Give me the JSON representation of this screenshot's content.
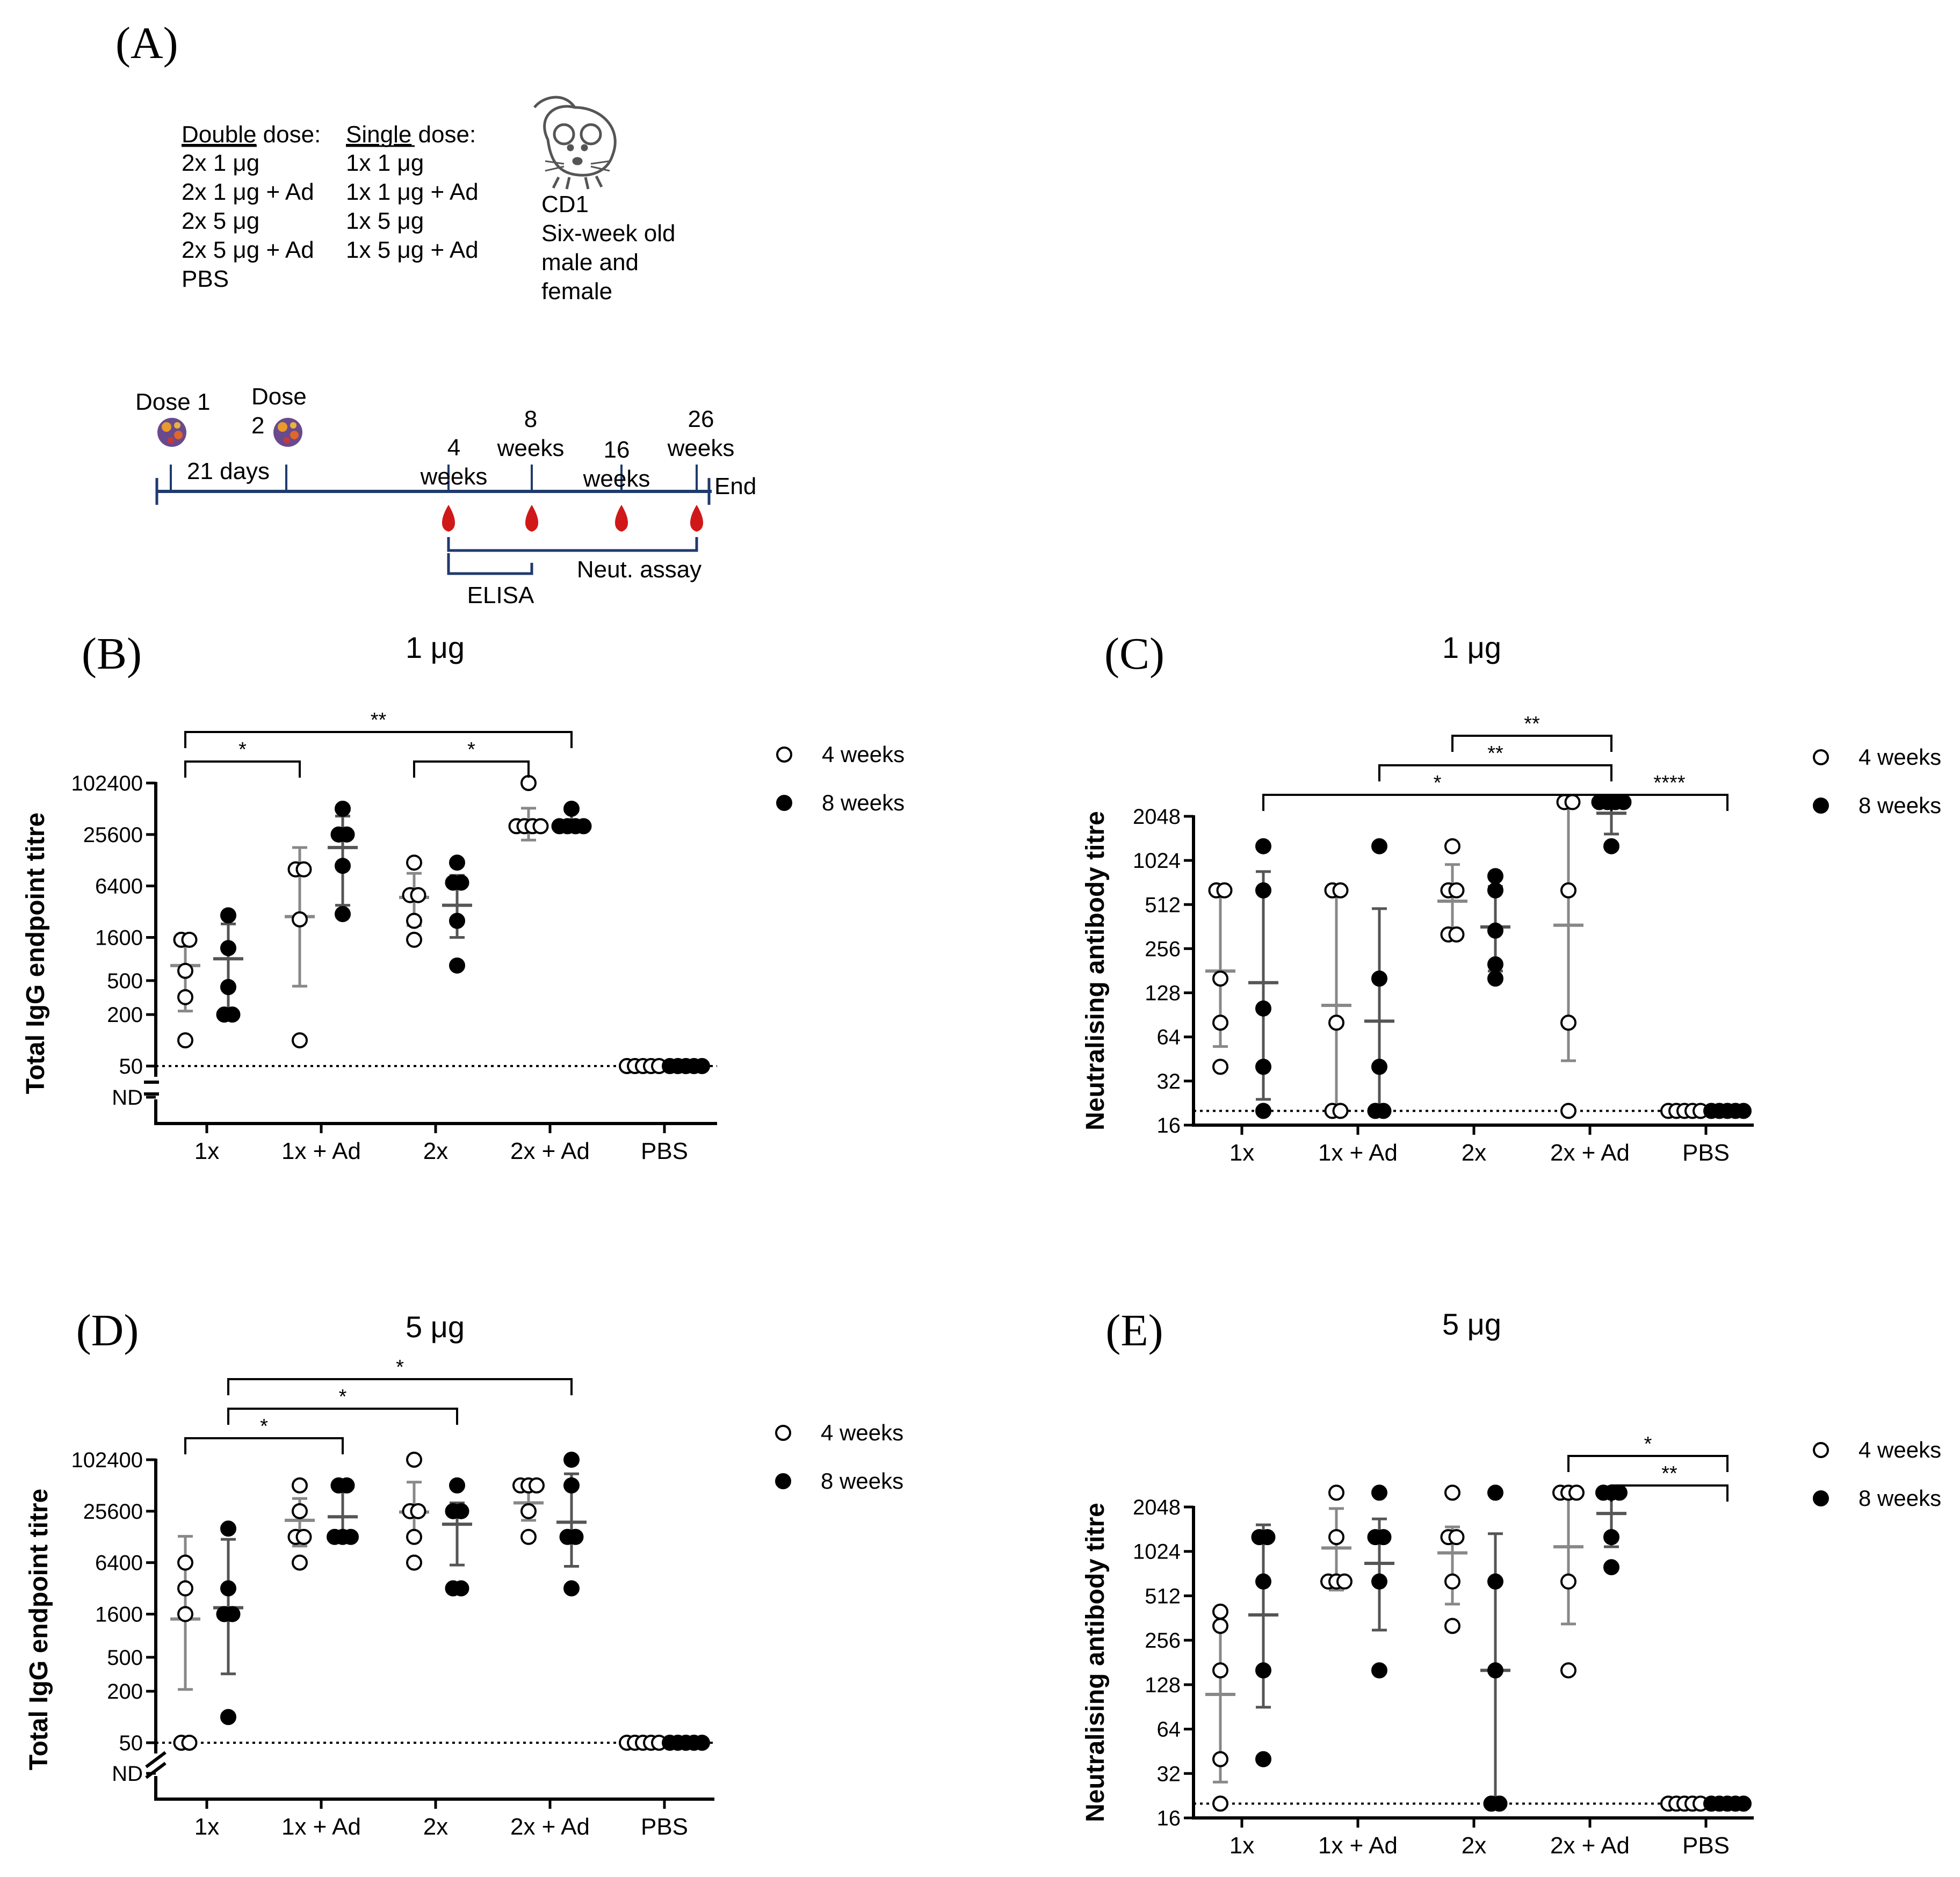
{
  "panel_a": {
    "label": "(A)",
    "double_dose": {
      "header_underlined": "Double",
      "header_rest": " dose:",
      "items": [
        "2x 1 μg",
        "2x 1 μg + Ad",
        "2x 5 μg",
        "2x 5 μg + Ad",
        "PBS"
      ]
    },
    "single_dose": {
      "header_underlined": "Single",
      "header_rest": " dose:",
      "items": [
        "1x 1 μg",
        "1x 1 μg + Ad",
        "1x 5 μg",
        "1x 5 μg + Ad"
      ]
    },
    "mouse_lines": [
      "CD1",
      "Six-week old",
      "male and",
      "female"
    ],
    "timeline": {
      "dose1": "Dose 1",
      "dose2_line1": "Dose",
      "dose2_line2": "2",
      "interval": "21 days",
      "end": "End",
      "weeks4": [
        "4",
        "weeks"
      ],
      "weeks8": [
        "8",
        "weeks"
      ],
      "weeks16": [
        "16",
        "weeks"
      ],
      "weeks26": [
        "26",
        "weeks"
      ],
      "elisa": "ELISA",
      "neut": "Neut. assay"
    },
    "colors": {
      "line": "#1f3a6e",
      "blood": "#d01818"
    }
  },
  "chart_data": [
    {
      "id": "B",
      "type": "scatter",
      "panel_label": "(B)",
      "title": "1 μg",
      "ylabel": "Total IgG endpoint titre",
      "yscale": "log2",
      "ylim": [
        50,
        102400
      ],
      "yticks": [
        "102400",
        "25600",
        "6400",
        "1600",
        "500",
        "200",
        "50"
      ],
      "ytick_values": [
        102400,
        25600,
        6400,
        1600,
        500,
        200,
        50
      ],
      "nd_label": "ND",
      "break_style": "horizontal",
      "detection_limit": 50,
      "categories": [
        "1x",
        "1x + Ad",
        "2x",
        "2x + Ad",
        "PBS"
      ],
      "legend": [
        "4 weeks",
        "8 weeks"
      ],
      "series": [
        {
          "name": "4 weeks",
          "open": true,
          "points": [
            [
              1500,
              1500,
              650,
              320,
              100
            ],
            [
              10000,
              10000,
              2600,
              100
            ],
            [
              12000,
              5000,
              5000,
              2500,
              1500
            ],
            [
              102400,
              32000,
              32000,
              32000,
              32000
            ],
            [
              50,
              50,
              50,
              50,
              50
            ]
          ],
          "mean": [
            750,
            2800,
            4700,
            36000,
            50
          ],
          "err": [
            [
              220,
              1600
            ],
            [
              430,
              18000
            ],
            [
              2200,
              9000
            ],
            [
              22000,
              52000
            ],
            [
              50,
              50
            ]
          ]
        },
        {
          "name": "8 weeks",
          "open": false,
          "points": [
            [
              2900,
              1200,
              420,
              200,
              200
            ],
            [
              51200,
              25600,
              25600,
              11000,
              3000
            ],
            [
              12000,
              7000,
              7000,
              2500,
              750
            ],
            [
              51200,
              32000,
              32000,
              32000,
              32000
            ],
            [
              50,
              50,
              50,
              50,
              50
            ]
          ],
          "mean": [
            900,
            18000,
            3800,
            36000,
            50
          ],
          "err": [
            [
              230,
              2300
            ],
            [
              3800,
              42000
            ],
            [
              1600,
              8500
            ],
            [
              36000,
              48000
            ],
            [
              50,
              50
            ]
          ]
        }
      ],
      "significance": [
        {
          "label": "*",
          "from": [
            0,
            0
          ],
          "to": [
            1,
            0
          ],
          "level": 0
        },
        {
          "label": "*",
          "from": [
            2,
            0
          ],
          "to": [
            3,
            0
          ],
          "level": 0
        },
        {
          "label": "**",
          "from": [
            0,
            0
          ],
          "to": [
            3,
            1
          ],
          "level": 1
        }
      ]
    },
    {
      "id": "C",
      "type": "scatter",
      "panel_label": "(C)",
      "title": "1 μg",
      "ylabel": "Neutralising antibody titre",
      "yscale": "log2",
      "ylim": [
        16,
        2048
      ],
      "yticks": [
        "2048",
        "1024",
        "512",
        "256",
        "128",
        "64",
        "32",
        "16"
      ],
      "ytick_values": [
        2048,
        1024,
        512,
        256,
        128,
        64,
        32,
        16
      ],
      "detection_limit": 20,
      "categories": [
        "1x",
        "1x + Ad",
        "2x",
        "2x + Ad",
        "PBS"
      ],
      "legend": [
        "4 weeks",
        "8 weeks"
      ],
      "series": [
        {
          "name": "4 weeks",
          "open": true,
          "points": [
            [
              640,
              640,
              160,
              80,
              40
            ],
            [
              640,
              640,
              80,
              20,
              20
            ],
            [
              1280,
              640,
              640,
              320,
              320
            ],
            [
              2560,
              2560,
              640,
              80,
              20
            ],
            [
              20,
              20,
              20,
              20,
              20
            ]
          ],
          "mean": [
            180,
            105,
            540,
            370,
            20
          ],
          "err": [
            [
              55,
              640
            ],
            [
              20,
              640
            ],
            [
              320,
              960
            ],
            [
              44,
              2560
            ],
            [
              20,
              20
            ]
          ]
        },
        {
          "name": "8 weeks",
          "open": false,
          "points": [
            [
              1280,
              640,
              100,
              40,
              20
            ],
            [
              1280,
              160,
              40,
              20,
              20
            ],
            [
              800,
              640,
              340,
              200,
              160
            ],
            [
              2560,
              2560,
              2560,
              2560,
              1280
            ],
            [
              20,
              20,
              20,
              20,
              20
            ]
          ],
          "mean": [
            150,
            82,
            360,
            2150,
            20
          ],
          "err": [
            [
              24,
              860
            ],
            [
              20,
              480
            ],
            [
              180,
              680
            ],
            [
              1550,
              2560
            ],
            [
              20,
              20
            ]
          ]
        }
      ],
      "significance": [
        {
          "label": "*",
          "from": [
            0,
            1
          ],
          "to": [
            3,
            1
          ],
          "level": 0
        },
        {
          "label": "****",
          "from": [
            3,
            1
          ],
          "to": [
            4,
            1
          ],
          "level": 0
        },
        {
          "label": "**",
          "from": [
            1,
            1
          ],
          "to": [
            3,
            1
          ],
          "level": 1
        },
        {
          "label": "**",
          "from": [
            2,
            0
          ],
          "to": [
            3,
            1
          ],
          "level": 2
        }
      ]
    },
    {
      "id": "D",
      "type": "scatter",
      "panel_label": "(D)",
      "title": "5 μg",
      "ylabel": "Total IgG endpoint titre",
      "yscale": "log2",
      "ylim": [
        50,
        102400
      ],
      "yticks": [
        "102400",
        "25600",
        "6400",
        "1600",
        "500",
        "200",
        "50"
      ],
      "ytick_values": [
        102400,
        25600,
        6400,
        1600,
        500,
        200,
        50
      ],
      "nd_label": "ND",
      "break_style": "diagonal",
      "detection_limit": 50,
      "categories": [
        "1x",
        "1x + Ad",
        "2x",
        "2x + Ad",
        "PBS"
      ],
      "legend": [
        "4 weeks",
        "8 weeks"
      ],
      "series": [
        {
          "name": "4 weeks",
          "open": true,
          "points": [
            [
              6400,
              3200,
              1600,
              50,
              50
            ],
            [
              51200,
              25600,
              12800,
              12800,
              6400
            ],
            [
              102400,
              25600,
              25600,
              12800,
              6400
            ],
            [
              51200,
              51200,
              51200,
              25600,
              12800
            ],
            [
              50,
              50,
              50,
              50,
              50
            ]
          ],
          "mean": [
            1400,
            20000,
            25000,
            32000,
            50
          ],
          "err": [
            [
              210,
              13000
            ],
            [
              10000,
              36000
            ],
            [
              12000,
              56000
            ],
            [
              20000,
              48000
            ],
            [
              50,
              50
            ]
          ]
        },
        {
          "name": "8 weeks",
          "open": false,
          "points": [
            [
              16000,
              3200,
              1600,
              1600,
              100
            ],
            [
              51200,
              51200,
              12800,
              12800,
              12800
            ],
            [
              51200,
              25600,
              25600,
              3200,
              3200
            ],
            [
              102400,
              51200,
              12800,
              12800,
              3200
            ],
            [
              50,
              50,
              50,
              50,
              50
            ]
          ],
          "mean": [
            1900,
            22000,
            18000,
            19000,
            50
          ],
          "err": [
            [
              320,
              12000
            ],
            [
              12000,
              45000
            ],
            [
              6000,
              32000
            ],
            [
              5800,
              70000
            ],
            [
              50,
              50
            ]
          ]
        }
      ],
      "significance": [
        {
          "label": "*",
          "from": [
            0,
            0
          ],
          "to": [
            1,
            1
          ],
          "level": 0
        },
        {
          "label": "*",
          "from": [
            0,
            1
          ],
          "to": [
            2,
            1
          ],
          "level": 1
        },
        {
          "label": "*",
          "from": [
            0,
            1
          ],
          "to": [
            3,
            1
          ],
          "level": 2
        }
      ]
    },
    {
      "id": "E",
      "type": "scatter",
      "panel_label": "(E)",
      "title": "5 μg",
      "ylabel": "Neutralising antibody titre",
      "yscale": "log2",
      "ylim": [
        16,
        2048
      ],
      "yticks": [
        "2048",
        "1024",
        "512",
        "256",
        "128",
        "64",
        "32",
        "16"
      ],
      "ytick_values": [
        2048,
        1024,
        512,
        256,
        128,
        64,
        32,
        16
      ],
      "detection_limit": 20,
      "categories": [
        "1x",
        "1x + Ad",
        "2x",
        "2x + Ad",
        "PBS"
      ],
      "legend": [
        "4 weeks",
        "8 weeks"
      ],
      "series": [
        {
          "name": "4 weeks",
          "open": true,
          "points": [
            [
              400,
              320,
              160,
              40,
              20
            ],
            [
              2560,
              1280,
              640,
              640,
              640
            ],
            [
              2560,
              1280,
              1280,
              640,
              320
            ],
            [
              2560,
              2560,
              2560,
              640,
              160
            ],
            [
              20,
              20,
              20,
              20,
              20
            ]
          ],
          "mean": [
            110,
            1080,
            1000,
            1100,
            20
          ],
          "err": [
            [
              28,
              400
            ],
            [
              560,
              2000
            ],
            [
              450,
              1500
            ],
            [
              330,
              2560
            ],
            [
              20,
              20
            ]
          ]
        },
        {
          "name": "8 weeks",
          "open": false,
          "points": [
            [
              1280,
              1280,
              640,
              160,
              40
            ],
            [
              2560,
              1280,
              1280,
              640,
              160
            ],
            [
              2560,
              640,
              160,
              20,
              20
            ],
            [
              2560,
              2560,
              2560,
              1280,
              800
            ],
            [
              20,
              20,
              20,
              20,
              20
            ]
          ],
          "mean": [
            380,
            850,
            160,
            1850,
            20
          ],
          "err": [
            [
              90,
              1550
            ],
            [
              300,
              1700
            ],
            [
              20,
              1350
            ],
            [
              1100,
              2560
            ],
            [
              20,
              20
            ]
          ]
        }
      ],
      "significance": [
        {
          "label": "**",
          "from": [
            3,
            1
          ],
          "to": [
            4,
            1
          ],
          "level": 0
        },
        {
          "label": "*",
          "from": [
            3,
            0
          ],
          "to": [
            4,
            1
          ],
          "level": 1
        }
      ]
    }
  ]
}
